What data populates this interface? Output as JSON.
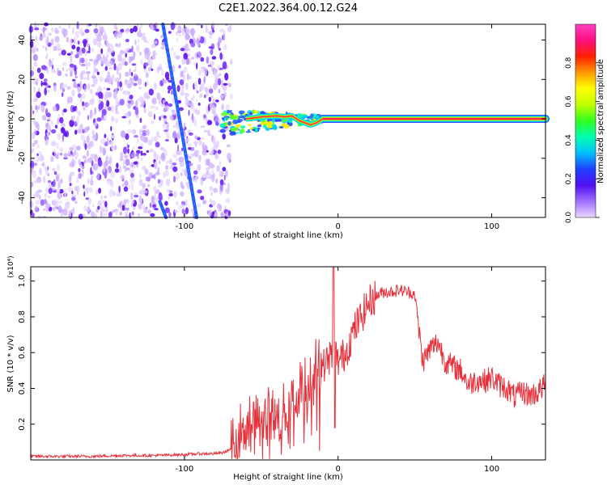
{
  "title": "C2E1.2022.364.00.12.G24",
  "chart_data": [
    {
      "type": "heatmap",
      "xlabel": "Height of straight line (km)",
      "ylabel": "Frequency (Hz)",
      "xlim": [
        -200,
        135
      ],
      "ylim": [
        -50,
        48
      ],
      "x_ticks": [
        -100,
        0,
        100
      ],
      "x_tick_labels": [
        "-100",
        "0",
        "100"
      ],
      "y_ticks": [
        -40,
        -20,
        0,
        20,
        40
      ],
      "y_tick_labels": [
        "-40",
        "-20",
        "0",
        "20",
        "40"
      ],
      "colorbar": {
        "label": "Normalized spectral amplitude",
        "range": [
          0,
          1
        ],
        "ticks": [
          0.0,
          0.2,
          0.4,
          0.6,
          0.8
        ],
        "tick_labels": [
          "0.0",
          "0.2",
          "0.4",
          "0.6",
          "0.8"
        ],
        "colors": [
          "#e8d8ff",
          "#a070ff",
          "#5010f0",
          "#2040ff",
          "#00c0ff",
          "#00ffb0",
          "#30ff20",
          "#c0ff00",
          "#ffff00",
          "#ff9900",
          "#ff2000",
          "#ff1080",
          "#ff40c0"
        ]
      },
      "features": {
        "noise_region_x": [
          -200,
          -70
        ],
        "tone_line_frequency": 0,
        "tone_line_x": [
          -70,
          135
        ],
        "streaks": [
          {
            "x": [
              -114,
              -92
            ],
            "y": [
              48,
              -50
            ]
          },
          {
            "x": [
              -116,
              -112
            ],
            "y": [
              -42,
              -50
            ]
          }
        ]
      }
    },
    {
      "type": "line",
      "xlabel": "Height of straight line (km)",
      "ylabel": "SNR (10 * v/v)",
      "y_multiplier": "(x10⁴)",
      "xlim": [
        -200,
        135
      ],
      "ylim": [
        0,
        1.08
      ],
      "x_ticks": [
        -100,
        0,
        100
      ],
      "x_tick_labels": [
        "-100",
        "0",
        "100"
      ],
      "y_ticks": [
        0.2,
        0.4,
        0.6,
        0.8,
        1.0
      ],
      "y_tick_labels": [
        "0.2",
        "0.4",
        "0.6",
        "0.8",
        "1.0"
      ],
      "series": [
        {
          "color": "#e8303a",
          "x": [
            -200,
            -180,
            -160,
            -140,
            -120,
            -100,
            -90,
            -80,
            -75,
            -70,
            -65,
            -60,
            -55,
            -50,
            -45,
            -40,
            -35,
            -30,
            -25,
            -20,
            -15,
            -10,
            -5,
            -2,
            0,
            5,
            10,
            15,
            20,
            25,
            30,
            35,
            40,
            45,
            50,
            55,
            60,
            65,
            70,
            75,
            80,
            85,
            90,
            95,
            100,
            105,
            110,
            115,
            120,
            125,
            130,
            135
          ],
          "values": [
            0.02,
            0.02,
            0.02,
            0.025,
            0.025,
            0.03,
            0.035,
            0.035,
            0.04,
            0.06,
            0.15,
            0.2,
            0.22,
            0.2,
            0.26,
            0.22,
            0.28,
            0.33,
            0.4,
            0.45,
            0.55,
            0.52,
            0.58,
            0.6,
            0.55,
            0.6,
            0.72,
            0.8,
            0.88,
            0.92,
            0.94,
            0.94,
            0.95,
            0.94,
            0.93,
            0.55,
            0.62,
            0.66,
            0.55,
            0.52,
            0.5,
            0.42,
            0.45,
            0.44,
            0.46,
            0.42,
            0.4,
            0.35,
            0.38,
            0.36,
            0.38,
            0.42
          ]
        }
      ]
    }
  ]
}
